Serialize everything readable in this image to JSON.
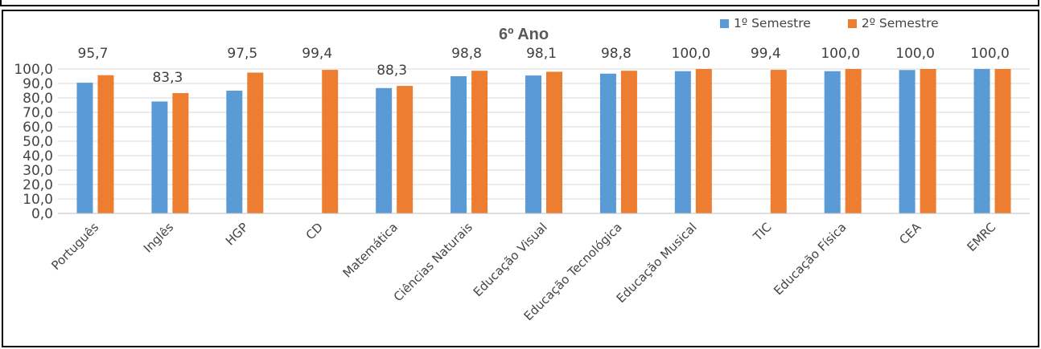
{
  "chart_data": {
    "type": "bar",
    "title": "6º Ano",
    "xlabel": "",
    "ylabel": "",
    "ylim": [
      0,
      100
    ],
    "yticks": [
      "0,0",
      "10,0",
      "20,0",
      "30,0",
      "40,0",
      "50,0",
      "60,0",
      "70,0",
      "80,0",
      "90,0",
      "100,0"
    ],
    "grid": true,
    "legend_position": "top-right",
    "categories": [
      "Português",
      "Inglês",
      "HGP",
      "CD",
      "Matemática",
      "Ciências Naturais",
      "Educação Visual",
      "Educação Tecnológica",
      "Educação Musical",
      "TIC",
      "Educação Física",
      "CEA",
      "EMRC"
    ],
    "series": [
      {
        "name": "1º Semestre",
        "color": "#5B9BD5",
        "values": [
          90.5,
          77.5,
          85.0,
          null,
          86.8,
          95.0,
          95.5,
          96.8,
          98.5,
          null,
          98.5,
          99.3,
          100.0
        ]
      },
      {
        "name": "2º Semestre",
        "color": "#ED7D31",
        "values": [
          95.7,
          83.3,
          97.5,
          99.4,
          88.3,
          98.8,
          98.1,
          98.8,
          100.0,
          99.4,
          100.0,
          100.0,
          100.0
        ],
        "labels": [
          "95,7",
          "83,3",
          "97,5",
          "99,4",
          "88,3",
          "98,8",
          "98,1",
          "98,8",
          "100,0",
          "99,4",
          "100,0",
          "100,0",
          "100,0"
        ]
      }
    ]
  }
}
